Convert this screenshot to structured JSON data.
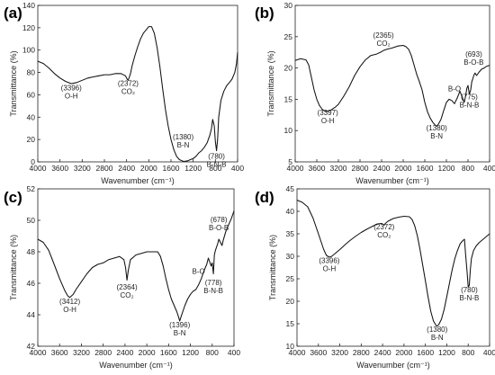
{
  "chart_data": [
    {
      "panel": "(a)",
      "type": "line",
      "xlabel": "Wavenumber (cm⁻¹)",
      "ylabel": "Transmittance (%)",
      "xlim": [
        4000,
        400
      ],
      "ylim": [
        0,
        140
      ],
      "xticks": [
        4000,
        3600,
        3200,
        2800,
        2400,
        2000,
        1600,
        1200,
        800,
        400
      ],
      "yticks": [
        0,
        20,
        40,
        60,
        80,
        100,
        120,
        140
      ],
      "x": [
        4000,
        3900,
        3800,
        3700,
        3600,
        3500,
        3396,
        3300,
        3200,
        3100,
        3000,
        2900,
        2800,
        2700,
        2600,
        2500,
        2420,
        2390,
        2372,
        2350,
        2330,
        2300,
        2250,
        2200,
        2150,
        2100,
        2050,
        2000,
        1950,
        1900,
        1850,
        1800,
        1750,
        1700,
        1650,
        1600,
        1550,
        1500,
        1450,
        1400,
        1380,
        1350,
        1300,
        1250,
        1200,
        1150,
        1100,
        1050,
        1000,
        950,
        900,
        870,
        850,
        820,
        800,
        780,
        760,
        740,
        700,
        650,
        600,
        550,
        500,
        450,
        420,
        400
      ],
      "y": [
        90,
        88,
        84,
        79,
        75,
        72,
        70,
        71,
        73,
        75,
        76,
        77,
        78,
        78,
        79,
        79,
        77,
        74,
        73,
        76,
        79,
        86,
        95,
        103,
        110,
        115,
        118,
        121,
        121,
        115,
        102,
        85,
        65,
        47,
        32,
        20,
        11,
        5,
        2,
        1,
        0.5,
        0.5,
        1,
        2,
        3,
        5,
        8,
        10,
        13,
        17,
        24,
        30,
        38,
        32,
        18,
        10,
        20,
        40,
        55,
        63,
        68,
        71,
        74,
        80,
        88,
        98
      ]
    },
    {
      "panel": "(b)",
      "type": "line",
      "xlabel": "Wavenumber (cm⁻¹)",
      "ylabel": "Transmittance (%)",
      "xlim": [
        4000,
        400
      ],
      "ylim": [
        5,
        30
      ],
      "xticks": [
        4000,
        3600,
        3200,
        2800,
        2400,
        2000,
        1600,
        1200,
        800,
        400
      ],
      "yticks": [
        5,
        10,
        15,
        20,
        25,
        30
      ],
      "x": [
        4000,
        3900,
        3800,
        3750,
        3700,
        3650,
        3600,
        3550,
        3500,
        3450,
        3397,
        3350,
        3300,
        3250,
        3200,
        3100,
        3000,
        2900,
        2800,
        2700,
        2600,
        2500,
        2400,
        2365,
        2300,
        2200,
        2100,
        2000,
        1950,
        1900,
        1850,
        1800,
        1750,
        1700,
        1650,
        1600,
        1550,
        1500,
        1450,
        1400,
        1380,
        1350,
        1300,
        1250,
        1200,
        1150,
        1100,
        1050,
        1000,
        950,
        900,
        870,
        850,
        820,
        800,
        775,
        750,
        730,
        710,
        693,
        670,
        640,
        600,
        550,
        500,
        450,
        400
      ],
      "y": [
        21.2,
        21.5,
        21.3,
        20.5,
        18.5,
        16.5,
        15,
        14,
        13.4,
        13.1,
        13.1,
        13.2,
        13.5,
        13.8,
        14.2,
        15.5,
        17,
        18.8,
        20.2,
        21.3,
        22,
        22.2,
        22.6,
        22.8,
        23,
        23.2,
        23.5,
        23.6,
        23.4,
        23,
        22,
        20.5,
        19,
        17.8,
        16.5,
        14.5,
        13,
        12,
        11.3,
        10.8,
        10.7,
        11,
        11.8,
        13.2,
        14.5,
        15,
        14.8,
        14.3,
        15.2,
        16.3,
        15.2,
        14.5,
        15.3,
        16.8,
        17.2,
        15.8,
        16.5,
        17.8,
        18.3,
        18.8,
        19.2,
        18.8,
        19.3,
        19.8,
        20,
        20.3,
        20.4
      ]
    },
    {
      "panel": "(c)",
      "type": "line",
      "xlabel": "Wavenumber (cm⁻¹)",
      "ylabel": "Transmittance (%)",
      "xlim": [
        4000,
        400
      ],
      "ylim": [
        42,
        52
      ],
      "xticks": [
        4000,
        3600,
        3200,
        2800,
        2400,
        2000,
        1600,
        1200,
        800,
        400
      ],
      "yticks": [
        42,
        44,
        46,
        48,
        50,
        52
      ],
      "x": [
        4000,
        3900,
        3800,
        3700,
        3600,
        3500,
        3450,
        3412,
        3350,
        3300,
        3200,
        3100,
        3000,
        2900,
        2800,
        2700,
        2600,
        2500,
        2420,
        2390,
        2364,
        2340,
        2300,
        2200,
        2100,
        2000,
        1900,
        1800,
        1750,
        1700,
        1650,
        1600,
        1550,
        1500,
        1450,
        1420,
        1396,
        1370,
        1340,
        1300,
        1250,
        1200,
        1150,
        1100,
        1050,
        1000,
        950,
        900,
        870,
        850,
        820,
        800,
        778,
        760,
        740,
        720,
        700,
        678,
        650,
        620,
        600,
        550,
        500,
        450,
        420,
        400
      ],
      "y": [
        48.8,
        48.6,
        48.1,
        47.2,
        46.3,
        45.5,
        45.2,
        45.1,
        45.3,
        45.6,
        46.1,
        46.6,
        47,
        47.2,
        47.3,
        47.5,
        47.6,
        47.7,
        47.5,
        47,
        46.2,
        46.8,
        47.5,
        47.8,
        47.9,
        48,
        48,
        48,
        47.7,
        47.1,
        46.3,
        45.6,
        45,
        44.6,
        44.2,
        43.9,
        43.6,
        43.9,
        44.2,
        44.6,
        45,
        45.3,
        45.5,
        45.6,
        45.9,
        46.3,
        46.8,
        47.2,
        47.6,
        47.4,
        47.1,
        47.3,
        46.6,
        47.8,
        48.1,
        48.3,
        48.5,
        48.8,
        48.6,
        48.4,
        48.7,
        49.3,
        49.7,
        50.1,
        50.4,
        50.6
      ]
    },
    {
      "panel": "(d)",
      "type": "line",
      "xlabel": "Wavenumber (cm⁻¹)",
      "ylabel": "Transmittance (%)",
      "xlim": [
        4000,
        400
      ],
      "ylim": [
        10,
        45
      ],
      "xticks": [
        4000,
        3600,
        3200,
        2800,
        2400,
        2000,
        1600,
        1200,
        800,
        400
      ],
      "yticks": [
        10,
        15,
        20,
        25,
        30,
        35,
        40,
        45
      ],
      "x": [
        4000,
        3900,
        3800,
        3700,
        3600,
        3500,
        3450,
        3396,
        3350,
        3300,
        3200,
        3100,
        3000,
        2900,
        2800,
        2700,
        2600,
        2500,
        2420,
        2390,
        2372,
        2350,
        2300,
        2200,
        2100,
        2000,
        1900,
        1850,
        1800,
        1750,
        1700,
        1650,
        1600,
        1550,
        1500,
        1450,
        1400,
        1380,
        1350,
        1300,
        1250,
        1200,
        1150,
        1100,
        1050,
        1000,
        950,
        900,
        870,
        850,
        820,
        800,
        780,
        760,
        740,
        700,
        650,
        600,
        550,
        500,
        450,
        400
      ],
      "y": [
        42.5,
        42,
        41,
        38.5,
        35,
        31.5,
        30.2,
        29.8,
        30,
        30.5,
        31.5,
        32.6,
        33.6,
        34.5,
        35.3,
        36,
        36.6,
        37.2,
        37.3,
        37.1,
        36.9,
        37.3,
        37.8,
        38.4,
        38.7,
        38.9,
        38.8,
        38.2,
        36.8,
        34.5,
        31.5,
        28,
        24.5,
        21,
        17.8,
        15.6,
        14.6,
        14.5,
        14.8,
        16,
        18.2,
        21,
        24,
        27,
        29.5,
        31.3,
        32.8,
        33.5,
        33.8,
        30.5,
        26.5,
        23.2,
        23.5,
        27,
        29.5,
        31.3,
        32.3,
        33,
        33.5,
        34,
        34.5,
        35
      ]
    }
  ],
  "annotations": {
    "a": [
      {
        "x": 3396,
        "y": 64,
        "lines": [
          "(3396)",
          "O-H"
        ]
      },
      {
        "x": 2372,
        "y": 68,
        "lines": [
          "(2372)",
          "CO₂"
        ]
      },
      {
        "x": 1380,
        "y": 20,
        "lines": [
          "(1380)",
          "B-N"
        ]
      },
      {
        "x": 780,
        "y": 3,
        "lines": [
          "(780)",
          "B-N-B"
        ]
      }
    ],
    "b": [
      {
        "x": 3397,
        "y": 12.5,
        "lines": [
          "(3397)",
          "O-H"
        ]
      },
      {
        "x": 2365,
        "y": 24.8,
        "lines": [
          "(2365)",
          "CO₂"
        ]
      },
      {
        "x": 1380,
        "y": 10,
        "lines": [
          "(1380)",
          "B-N"
        ]
      },
      {
        "x": 1050,
        "y": 16.3,
        "lines": [
          "B-O"
        ]
      },
      {
        "x": 693,
        "y": 21.8,
        "lines": [
          "(693)",
          "B-O-B"
        ]
      },
      {
        "x": 775,
        "y": 15,
        "lines": [
          "(775)",
          "B-N-B"
        ]
      }
    ],
    "c": [
      {
        "x": 3412,
        "y": 44.7,
        "lines": [
          "(3412)",
          "O-H"
        ]
      },
      {
        "x": 2364,
        "y": 45.6,
        "lines": [
          "(2364)",
          "CO₂"
        ]
      },
      {
        "x": 1396,
        "y": 43.2,
        "lines": [
          "(1396)",
          "B-N"
        ]
      },
      {
        "x": 1050,
        "y": 46.6,
        "lines": [
          "B-O"
        ]
      },
      {
        "x": 678,
        "y": 49.9,
        "lines": [
          "(678)",
          "B-O-B"
        ]
      },
      {
        "x": 778,
        "y": 45.9,
        "lines": [
          "(778)",
          "B-N-B"
        ]
      }
    ],
    "d": [
      {
        "x": 3396,
        "y": 28.5,
        "lines": [
          "(3396)",
          "O-H"
        ]
      },
      {
        "x": 2372,
        "y": 36,
        "lines": [
          "(2372)",
          "CO₂"
        ]
      },
      {
        "x": 1380,
        "y": 13.2,
        "lines": [
          "(1380)",
          "B-N"
        ]
      },
      {
        "x": 780,
        "y": 22,
        "lines": [
          "(780)",
          "B-N-B"
        ]
      }
    ]
  }
}
